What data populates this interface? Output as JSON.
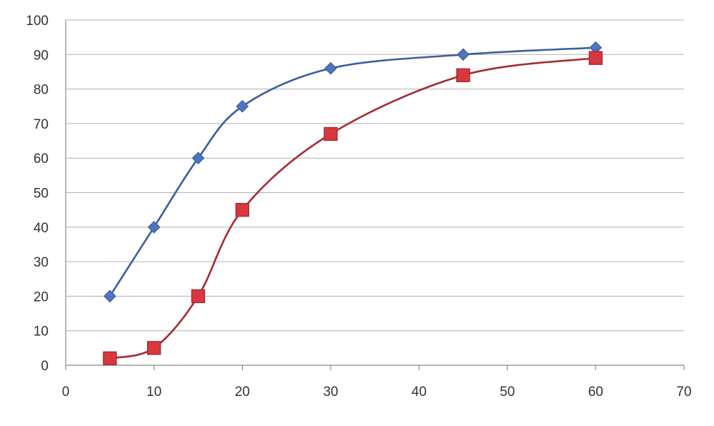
{
  "chart_data": {
    "type": "line",
    "title": "",
    "xlabel": "",
    "ylabel": "",
    "xlim": [
      0,
      70
    ],
    "ylim": [
      0,
      100
    ],
    "x_ticks": [
      0,
      10,
      20,
      30,
      40,
      50,
      60,
      70
    ],
    "y_ticks": [
      0,
      10,
      20,
      30,
      40,
      50,
      60,
      70,
      80,
      90,
      100
    ],
    "grid": "horizontal",
    "smooth": true,
    "legend": "none",
    "series": [
      {
        "color": "#3A5E9C",
        "marker_color": "#4F74C0",
        "marker": "diamond",
        "points": [
          {
            "x": 5,
            "y": 20
          },
          {
            "x": 10,
            "y": 40
          },
          {
            "x": 15,
            "y": 60
          },
          {
            "x": 20,
            "y": 75
          },
          {
            "x": 30,
            "y": 86
          },
          {
            "x": 45,
            "y": 90
          },
          {
            "x": 60,
            "y": 92
          }
        ]
      },
      {
        "color": "#A52A33",
        "marker_color": "#D9373F",
        "marker": "square",
        "points": [
          {
            "x": 5,
            "y": 2
          },
          {
            "x": 10,
            "y": 5
          },
          {
            "x": 15,
            "y": 20
          },
          {
            "x": 20,
            "y": 45
          },
          {
            "x": 30,
            "y": 67
          },
          {
            "x": 45,
            "y": 84
          },
          {
            "x": 60,
            "y": 89
          }
        ]
      }
    ]
  }
}
